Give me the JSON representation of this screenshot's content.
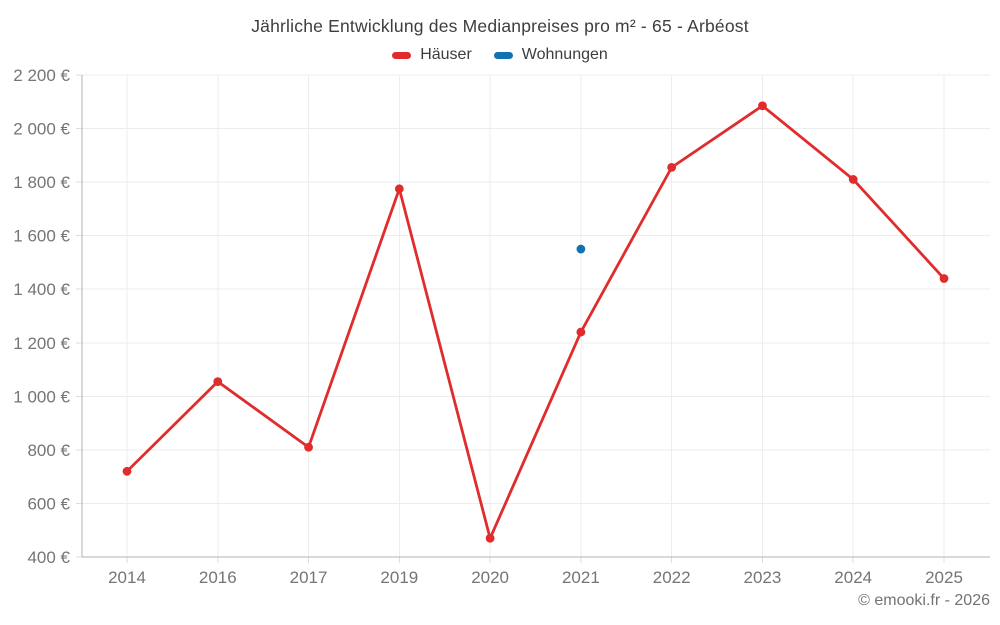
{
  "page": {
    "background": "#ffffff"
  },
  "footer": {
    "credit": "© emooki.fr - 2026"
  },
  "chart_data": {
    "type": "line",
    "title": "Jährliche Entwicklung des Medianpreises pro m² - 65 - Arbéost",
    "legend_position": "top",
    "grid": true,
    "categories": [
      "2014",
      "2016",
      "2017",
      "2019",
      "2020",
      "2021",
      "2022",
      "2023",
      "2024",
      "2025"
    ],
    "series": [
      {
        "name": "Häuser",
        "color": "#e02c2c",
        "values": [
          720,
          1055,
          810,
          1775,
          470,
          1240,
          1855,
          2085,
          1810,
          1440
        ]
      },
      {
        "name": "Wohnungen",
        "color": "#1271b0",
        "values": [
          null,
          null,
          null,
          null,
          null,
          1550,
          null,
          null,
          null,
          null
        ]
      }
    ],
    "ylim": [
      400,
      2200
    ],
    "ytick_step": 200,
    "y_ticks": [
      {
        "value": 400,
        "label": "400 €"
      },
      {
        "value": 600,
        "label": "600 €"
      },
      {
        "value": 800,
        "label": "800 €"
      },
      {
        "value": 1000,
        "label": "1 000 €"
      },
      {
        "value": 1200,
        "label": "1 200 €"
      },
      {
        "value": 1400,
        "label": "1 400 €"
      },
      {
        "value": 1600,
        "label": "1 600 €"
      },
      {
        "value": 1800,
        "label": "1 800 €"
      },
      {
        "value": 2000,
        "label": "2 000 €"
      },
      {
        "value": 2200,
        "label": "2 200 €"
      }
    ],
    "colors": {
      "gridline": "#ededed",
      "axis": "#b3b3b3",
      "tick": "#dedede",
      "tick_text": "#757575",
      "title_text": "#3d3d3d"
    }
  }
}
